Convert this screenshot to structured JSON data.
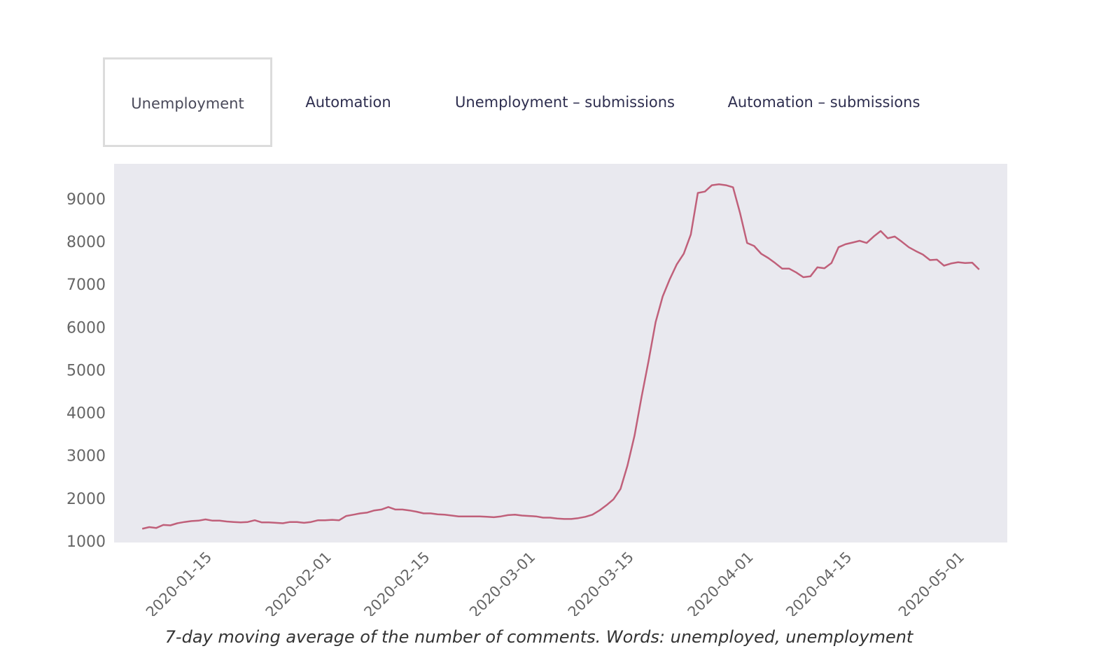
{
  "tabs": [
    {
      "label": "Unemployment",
      "active": true
    },
    {
      "label": "Automation",
      "active": false
    },
    {
      "label": "Unemployment – submissions",
      "active": false
    },
    {
      "label": "Automation – submissions",
      "active": false
    }
  ],
  "caption": "7-day moving average of the number of comments. Words: unemployed, unemployment",
  "colors": {
    "line": "#c0607a",
    "plot_background": "#e9e9ef",
    "tick_text": "#666666"
  },
  "chart_data": {
    "type": "line",
    "title": "",
    "xlabel": "",
    "ylabel": "",
    "grid": false,
    "x_start": "2020-01-05",
    "x_step_days": 1,
    "xlim": [
      "2020-01-01",
      "2020-05-07"
    ],
    "ylim": [
      950,
      9800
    ],
    "yticks": [
      1000,
      2000,
      3000,
      4000,
      5000,
      6000,
      7000,
      8000,
      9000
    ],
    "xticks": [
      {
        "label": "2020-01-15",
        "date": "2020-01-15"
      },
      {
        "label": "2020-02-01",
        "date": "2020-02-01"
      },
      {
        "label": "2020-02-15",
        "date": "2020-02-15"
      },
      {
        "label": "2020-03-01",
        "date": "2020-03-01"
      },
      {
        "label": "2020-03-15",
        "date": "2020-03-15"
      },
      {
        "label": "2020-04-01",
        "date": "2020-04-01"
      },
      {
        "label": "2020-04-15",
        "date": "2020-04-15"
      },
      {
        "label": "2020-05-01",
        "date": "2020-05-01"
      }
    ],
    "series": [
      {
        "name": "unemployed, unemployment",
        "values": [
          1270,
          1310,
          1290,
          1360,
          1350,
          1400,
          1430,
          1450,
          1460,
          1490,
          1460,
          1460,
          1440,
          1430,
          1420,
          1430,
          1470,
          1420,
          1420,
          1410,
          1400,
          1430,
          1430,
          1410,
          1430,
          1470,
          1470,
          1480,
          1470,
          1570,
          1600,
          1630,
          1650,
          1700,
          1720,
          1780,
          1720,
          1720,
          1700,
          1670,
          1630,
          1630,
          1610,
          1600,
          1580,
          1560,
          1560,
          1560,
          1560,
          1550,
          1540,
          1560,
          1590,
          1600,
          1580,
          1570,
          1560,
          1530,
          1530,
          1510,
          1500,
          1500,
          1520,
          1550,
          1600,
          1700,
          1820,
          1960,
          2200,
          2750,
          3450,
          4350,
          5200,
          6100,
          6700,
          7100,
          7450,
          7700,
          8150,
          9120,
          9150,
          9300,
          9320,
          9300,
          9250,
          8650,
          7950,
          7880,
          7700,
          7600,
          7480,
          7350,
          7350,
          7260,
          7150,
          7170,
          7380,
          7360,
          7480,
          7850,
          7920,
          7960,
          8000,
          7950,
          8100,
          8230,
          8060,
          8100,
          7980,
          7850,
          7760,
          7680,
          7550,
          7560,
          7420,
          7470,
          7500,
          7480,
          7490,
          7330
        ]
      }
    ]
  }
}
